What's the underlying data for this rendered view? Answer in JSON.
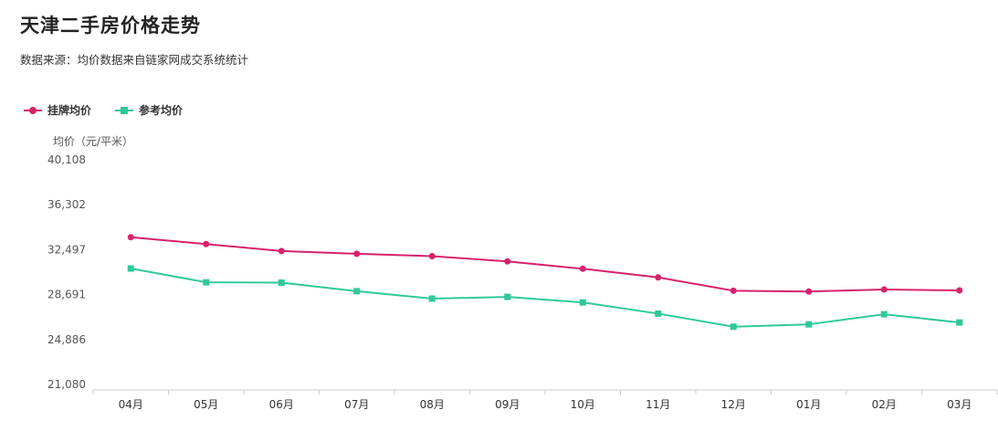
{
  "title": "天津二手房价格走势",
  "subtitle": "数据来源：均价数据来自链家网成交系统统计",
  "colors": {
    "listing": "#d6226b",
    "reference": "#2fc99a",
    "axis": "#cccccc",
    "text": "#555555"
  },
  "chart_data": {
    "type": "line",
    "ylabel": "均价（元/平米）",
    "categories": [
      "04月",
      "05月",
      "06月",
      "07月",
      "08月",
      "09月",
      "10月",
      "11月",
      "12月",
      "01月",
      "02月",
      "03月"
    ],
    "yticks": [
      21080,
      24886,
      28691,
      32497,
      36302,
      40108
    ],
    "ytick_labels": [
      "21,080",
      "24,886",
      "28,691",
      "32,497",
      "36,302",
      "40,108"
    ],
    "ylim": [
      21080,
      40108
    ],
    "legend_position": "top-left",
    "grid": false,
    "series": [
      {
        "name": "挂牌均价",
        "marker": "circle",
        "color": "#d6226b",
        "values": [
          33550,
          32970,
          32380,
          32150,
          31950,
          31500,
          30880,
          30150,
          29020,
          28950,
          29120,
          29050
        ]
      },
      {
        "name": "参考均价",
        "marker": "square",
        "color": "#2fc99a",
        "values": [
          30900,
          29730,
          29700,
          28980,
          28350,
          28500,
          28030,
          27080,
          25970,
          26170,
          27030,
          26330
        ]
      }
    ]
  }
}
